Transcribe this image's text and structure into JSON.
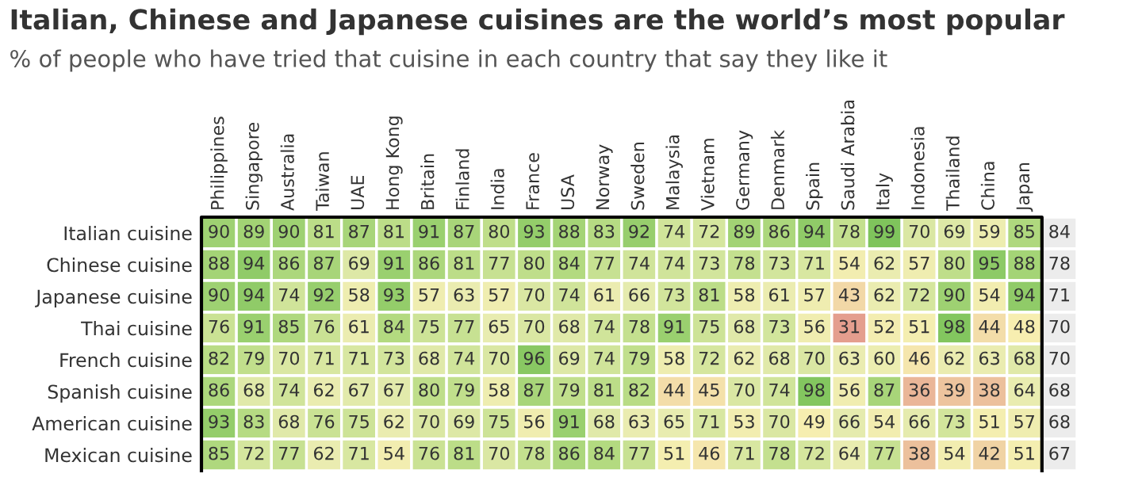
{
  "chart_data": {
    "type": "heatmap",
    "title": "Italian, Chinese and Japanese cuisines are the world’s most popular",
    "subtitle": "% of people who have tried that cuisine in each country that say they like it",
    "categories": [
      "Philippines",
      "Singapore",
      "Australia",
      "Taiwan",
      "UAE",
      "Hong Kong",
      "Britain",
      "Finland",
      "India",
      "France",
      "USA",
      "Norway",
      "Sweden",
      "Malaysia",
      "Vietnam",
      "Germany",
      "Denmark",
      "Spain",
      "Saudi Arabia",
      "Italy",
      "Indonesia",
      "Thailand",
      "China",
      "Japan",
      null
    ],
    "y_categories": [
      "Italian cuisine",
      "Chinese cuisine",
      "Japanese cuisine",
      "Thai cuisine",
      "French cuisine",
      "Spanish cuisine",
      "American cuisine",
      "Mexican cuisine"
    ],
    "cells": [
      [
        90,
        89,
        90,
        81,
        87,
        81,
        91,
        87,
        80,
        93,
        88,
        83,
        92,
        74,
        72,
        89,
        86,
        94,
        78,
        99,
        70,
        69,
        59,
        85,
        84
      ],
      [
        88,
        94,
        86,
        87,
        69,
        91,
        86,
        81,
        77,
        80,
        84,
        77,
        74,
        74,
        73,
        78,
        73,
        71,
        54,
        62,
        57,
        80,
        95,
        88,
        78
      ],
      [
        90,
        94,
        74,
        92,
        58,
        93,
        57,
        63,
        57,
        70,
        74,
        61,
        66,
        73,
        81,
        58,
        61,
        57,
        43,
        62,
        72,
        90,
        54,
        94,
        71
      ],
      [
        76,
        91,
        85,
        76,
        61,
        84,
        75,
        77,
        65,
        70,
        68,
        74,
        78,
        91,
        75,
        68,
        73,
        56,
        31,
        52,
        51,
        98,
        44,
        48,
        70
      ],
      [
        82,
        79,
        70,
        71,
        71,
        73,
        68,
        74,
        70,
        96,
        69,
        74,
        79,
        58,
        72,
        62,
        68,
        70,
        63,
        60,
        46,
        62,
        63,
        68,
        70
      ],
      [
        86,
        68,
        74,
        62,
        67,
        67,
        80,
        79,
        58,
        87,
        79,
        81,
        82,
        44,
        45,
        70,
        74,
        98,
        56,
        87,
        36,
        39,
        38,
        64,
        68
      ],
      [
        93,
        83,
        68,
        76,
        75,
        62,
        70,
        69,
        75,
        56,
        91,
        68,
        63,
        65,
        71,
        53,
        70,
        49,
        66,
        54,
        66,
        73,
        51,
        57,
        68
      ],
      [
        85,
        72,
        77,
        62,
        71,
        54,
        76,
        81,
        70,
        78,
        86,
        84,
        77,
        51,
        46,
        71,
        78,
        72,
        64,
        77,
        38,
        54,
        42,
        51,
        67
      ]
    ],
    "data_labels": true
  }
}
